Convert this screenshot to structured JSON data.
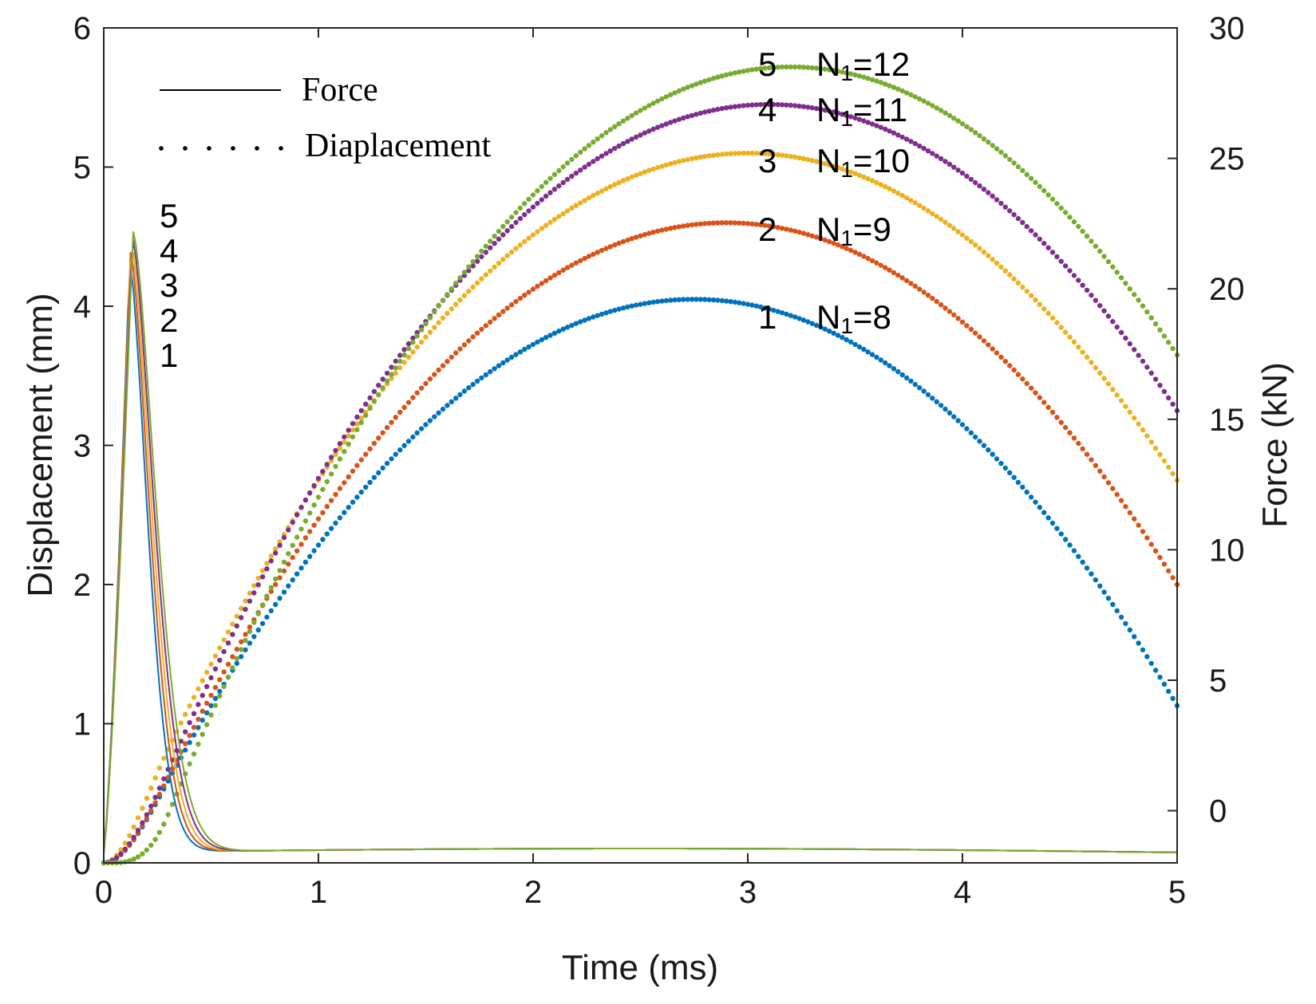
{
  "chart_data": {
    "type": "line",
    "x_label": "Time (ms)",
    "y_left_label": "Displacement (mm)",
    "y_right_label": "Force (kN)",
    "x_ticks": [
      "0",
      "1",
      "2",
      "3",
      "4",
      "5"
    ],
    "y_left_ticks": [
      "0",
      "1",
      "2",
      "3",
      "4",
      "5",
      "6"
    ],
    "y_right_ticks": [
      "0",
      "5",
      "10",
      "15",
      "20",
      "25",
      "30"
    ],
    "xlim": [
      0,
      5
    ],
    "ylim_left": [
      0,
      6
    ],
    "ylim_right": [
      -2,
      30
    ],
    "legend": [
      {
        "label": "Force",
        "style": "solid"
      },
      {
        "label": "Diaplacement",
        "style": "dotted"
      }
    ],
    "series": [
      {
        "id": "1",
        "name": "1",
        "n_label": "N",
        "n_sub": "1",
        "n_value": "=8",
        "color": "#0072BD",
        "disp_peak_x": 2.75,
        "disp_peak": 4.05,
        "disp_end": 1.13,
        "force_peak": 21.0
      },
      {
        "id": "2",
        "name": "2",
        "n_label": "N",
        "n_sub": "1",
        "n_value": "=9",
        "color": "#D95319",
        "disp_peak_x": 2.9,
        "disp_peak": 4.6,
        "disp_end": 2.0,
        "force_peak": 21.4
      },
      {
        "id": "3",
        "name": "3",
        "n_label": "N",
        "n_sub": "1",
        "n_value": "=10",
        "color": "#EDB120",
        "disp_peak_x": 3.0,
        "disp_peak": 5.1,
        "disp_end": 2.75,
        "force_peak": 21.7
      },
      {
        "id": "4",
        "name": "4",
        "n_label": "N",
        "n_sub": "1",
        "n_value": "=11",
        "color": "#7E2F8E",
        "disp_peak_x": 3.1,
        "disp_peak": 5.45,
        "disp_end": 3.25,
        "force_peak": 22.0
      },
      {
        "id": "5",
        "name": "5",
        "n_label": "N",
        "n_sub": "1",
        "n_value": "=12",
        "color": "#77AC30",
        "disp_peak_x": 3.2,
        "disp_peak": 5.72,
        "disp_end": 3.65,
        "force_peak": 22.2
      }
    ],
    "force_peak_time": 0.12
  }
}
